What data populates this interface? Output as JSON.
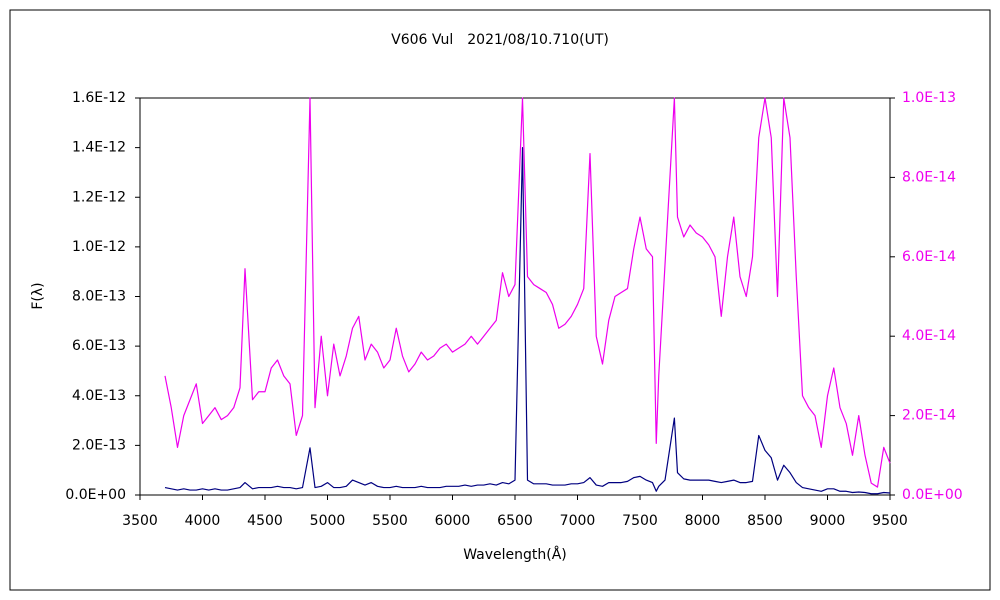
{
  "chart_data": {
    "type": "line",
    "title": "V606 Vul　2021/08/10.710(UT)",
    "x_label": "Wavelength(Å)",
    "y_label": "F(λ)",
    "x": [
      3700,
      3750,
      3800,
      3850,
      3900,
      3950,
      4000,
      4050,
      4100,
      4150,
      4200,
      4250,
      4300,
      4340,
      4400,
      4450,
      4500,
      4550,
      4600,
      4650,
      4700,
      4750,
      4800,
      4860,
      4900,
      4950,
      5000,
      5050,
      5100,
      5150,
      5200,
      5250,
      5300,
      5350,
      5400,
      5450,
      5500,
      5550,
      5600,
      5650,
      5700,
      5750,
      5800,
      5850,
      5900,
      5950,
      6000,
      6050,
      6100,
      6150,
      6200,
      6250,
      6300,
      6350,
      6400,
      6450,
      6500,
      6560,
      6600,
      6650,
      6700,
      6750,
      6800,
      6850,
      6900,
      6950,
      7000,
      7050,
      7100,
      7150,
      7200,
      7250,
      7300,
      7350,
      7400,
      7450,
      7500,
      7550,
      7600,
      7630,
      7650,
      7700,
      7775,
      7800,
      7850,
      7900,
      7950,
      8000,
      8050,
      8100,
      8150,
      8200,
      8250,
      8300,
      8350,
      8400,
      8450,
      8500,
      8550,
      8600,
      8650,
      8700,
      8750,
      8800,
      8850,
      8900,
      8950,
      9000,
      9050,
      9100,
      9150,
      9200,
      9250,
      9300,
      9350,
      9400,
      9450,
      9500
    ],
    "series": [
      {
        "color": "#ee00ee",
        "axis": "y2",
        "values": [
          3e-14,
          2.2e-14,
          1.2e-14,
          2e-14,
          2.4e-14,
          2.8e-14,
          1.8e-14,
          2e-14,
          2.2e-14,
          1.9e-14,
          2e-14,
          2.2e-14,
          2.7e-14,
          5.7e-14,
          2.4e-14,
          2.6e-14,
          2.6e-14,
          3.2e-14,
          3.4e-14,
          3e-14,
          2.8e-14,
          1.5e-14,
          2e-14,
          1e-13,
          2.2e-14,
          4e-14,
          2.5e-14,
          3.8e-14,
          3e-14,
          3.5e-14,
          4.2e-14,
          4.5e-14,
          3.4e-14,
          3.8e-14,
          3.6e-14,
          3.2e-14,
          3.4e-14,
          4.2e-14,
          3.5e-14,
          3.1e-14,
          3.3e-14,
          3.6e-14,
          3.4e-14,
          3.5e-14,
          3.7e-14,
          3.8e-14,
          3.6e-14,
          3.7e-14,
          3.8e-14,
          4e-14,
          3.8e-14,
          4e-14,
          4.2e-14,
          4.4e-14,
          5.6e-14,
          5e-14,
          5.3e-14,
          1e-13,
          5.5e-14,
          5.3e-14,
          5.2e-14,
          5.1e-14,
          4.8e-14,
          4.2e-14,
          4.3e-14,
          4.5e-14,
          4.8e-14,
          5.2e-14,
          8.6e-14,
          4e-14,
          3.3e-14,
          4.4e-14,
          5e-14,
          5.1e-14,
          5.2e-14,
          6.2e-14,
          7e-14,
          6.2e-14,
          6e-14,
          1.3e-14,
          3e-14,
          5.8e-14,
          1e-13,
          7e-14,
          6.5e-14,
          6.8e-14,
          6.6e-14,
          6.5e-14,
          6.3e-14,
          6e-14,
          4.5e-14,
          6e-14,
          7e-14,
          5.5e-14,
          5e-14,
          6e-14,
          9e-14,
          1e-13,
          9e-14,
          5e-14,
          1e-13,
          9e-14,
          5.5e-14,
          2.5e-14,
          2.2e-14,
          2e-14,
          1.2e-14,
          2.5e-14,
          3.2e-14,
          2.2e-14,
          1.8e-14,
          1e-14,
          2e-14,
          1e-14,
          3e-15,
          2e-15,
          1.2e-14,
          8e-15
        ]
      },
      {
        "color": "#000080",
        "values": [
          3e-14,
          2.5e-14,
          2e-14,
          2.5e-14,
          2e-14,
          2e-14,
          2.5e-14,
          2e-14,
          2.5e-14,
          2e-14,
          2e-14,
          2.5e-14,
          3e-14,
          5e-14,
          2.5e-14,
          3e-14,
          3e-14,
          3e-14,
          3.5e-14,
          3e-14,
          3e-14,
          2.5e-14,
          3e-14,
          1.9e-13,
          3e-14,
          3.5e-14,
          5e-14,
          3e-14,
          3e-14,
          3.5e-14,
          6e-14,
          5e-14,
          4e-14,
          5e-14,
          3.5e-14,
          3e-14,
          3e-14,
          3.5e-14,
          3e-14,
          3e-14,
          3e-14,
          3.5e-14,
          3e-14,
          3e-14,
          3e-14,
          3.5e-14,
          3.5e-14,
          3.5e-14,
          4e-14,
          3.5e-14,
          4e-14,
          4e-14,
          4.5e-14,
          4e-14,
          5e-14,
          4.5e-14,
          6e-14,
          1.4e-12,
          6e-14,
          4.5e-14,
          4.5e-14,
          4.5e-14,
          4e-14,
          4e-14,
          4e-14,
          4.5e-14,
          4.5e-14,
          5e-14,
          7e-14,
          4e-14,
          3.5e-14,
          5e-14,
          5e-14,
          5e-14,
          5.5e-14,
          7e-14,
          7.5e-14,
          6e-14,
          5e-14,
          1.5e-14,
          3.5e-14,
          6e-14,
          3.1e-13,
          9e-14,
          6.5e-14,
          6e-14,
          6e-14,
          6e-14,
          6e-14,
          5.5e-14,
          5e-14,
          5.5e-14,
          6e-14,
          5e-14,
          5e-14,
          5.5e-14,
          2.4e-13,
          1.8e-13,
          1.5e-13,
          6e-14,
          1.2e-13,
          9e-14,
          5e-14,
          3e-14,
          2.5e-14,
          2e-14,
          1.5e-14,
          2.5e-14,
          2.5e-14,
          1.5e-14,
          1.5e-14,
          1e-14,
          1.2e-14,
          1e-14,
          5e-15,
          5e-15,
          1e-14,
          8e-15
        ]
      }
    ],
    "xlim": [
      3500,
      9500
    ],
    "xticks": [
      3500,
      4000,
      4500,
      5000,
      5500,
      6000,
      6500,
      7000,
      7500,
      8000,
      8500,
      9000,
      9500
    ],
    "ylim": [
      0,
      1.6e-12
    ],
    "yticks": [
      {
        "value": 0,
        "label": "0.0E+00"
      },
      {
        "value": 2e-13,
        "label": "2.0E-13"
      },
      {
        "value": 4e-13,
        "label": "4.0E-13"
      },
      {
        "value": 6e-13,
        "label": "6.0E-13"
      },
      {
        "value": 8e-13,
        "label": "8.0E-13"
      },
      {
        "value": 1e-12,
        "label": "1.0E-12"
      },
      {
        "value": 1.2e-12,
        "label": "1.2E-12"
      },
      {
        "value": 1.4e-12,
        "label": "1.4E-12"
      },
      {
        "value": 1.6e-12,
        "label": "1.6E-12"
      }
    ],
    "y2lim": [
      0,
      1e-13
    ],
    "y2ticks": [
      {
        "value": 0,
        "label": "0.0E+00"
      },
      {
        "value": 2e-14,
        "label": "2.0E-14"
      },
      {
        "value": 4e-14,
        "label": "4.0E-14"
      },
      {
        "value": 6e-14,
        "label": "6.0E-14"
      },
      {
        "value": 8e-14,
        "label": "8.0E-14"
      },
      {
        "value": 1e-13,
        "label": "1.0E-13"
      }
    ],
    "y2_color": "#ee00ee",
    "grid": false
  }
}
